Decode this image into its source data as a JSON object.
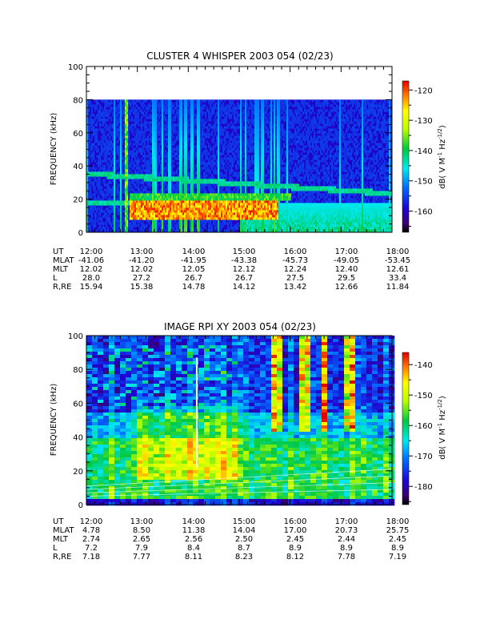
{
  "chart_data": [
    {
      "type": "heatmap",
      "title": "CLUSTER 4 WHISPER 2003 054 (02/23)",
      "ylabel": "FREQUENCY (kHz)",
      "ylim": [
        0,
        100
      ],
      "yticks": [
        "0",
        "20",
        "40",
        "60",
        "80",
        "100"
      ],
      "data_ymax": 80,
      "colorbar": {
        "label_main": "dB( V M",
        "label_sup1": "-1",
        "label_mid": " Hz",
        "label_sup2": "-1/2",
        "label_end": ")",
        "range": [
          -167,
          -117
        ],
        "ticks": [
          "-120",
          "-130",
          "-140",
          "-150",
          "-160"
        ]
      },
      "x": [
        "12:00",
        "13:00",
        "14:00",
        "15:00",
        "16:00",
        "17:00",
        "18:00"
      ],
      "orbit_labels": [
        "UT",
        "MLAT",
        "MLT",
        "L",
        "R,RE"
      ],
      "orbit_rows": [
        [
          "12:00",
          "13:00",
          "14:00",
          "15:00",
          "16:00",
          "17:00",
          "18:00"
        ],
        [
          "-41.06",
          "-41.20",
          "-41.95",
          "-43.38",
          "-45.73",
          "-49.05",
          "-53.45"
        ],
        [
          "12.02",
          "12.02",
          "12.05",
          "12.12",
          "12.24",
          "12.40",
          "12.61"
        ],
        [
          "28.0",
          "27.2",
          "26.7",
          "26.7",
          "27.5",
          "29.5",
          "33.4"
        ],
        [
          "15.94",
          "15.38",
          "14.78",
          "14.12",
          "13.42",
          "12.66",
          "11.84"
        ]
      ],
      "features": {
        "line_near_36_to_25_khz": true,
        "band_near_18_khz_until_1250": true,
        "intense_band_8_to_20_khz_1250_to_1545": true
      }
    },
    {
      "type": "heatmap",
      "title": "IMAGE RPI XY 2003 054 (02/23)",
      "ylabel": "FREQUENCY (kHz)",
      "ylim": [
        0,
        100
      ],
      "yticks": [
        "0",
        "20",
        "40",
        "60",
        "80",
        "100"
      ],
      "colorbar": {
        "label_main": "dB( V M",
        "label_sup1": "-1",
        "label_mid": " Hz",
        "label_sup2": "-1/2",
        "label_end": ")",
        "range": [
          -186,
          -136
        ],
        "ticks": [
          "-140",
          "-150",
          "-160",
          "-170",
          "-180"
        ]
      },
      "x": [
        "12:00",
        "13:00",
        "14:00",
        "15:00",
        "16:00",
        "17:00",
        "18:00"
      ],
      "orbit_labels": [
        "UT",
        "MLAT",
        "MLT",
        "L",
        "R,RE"
      ],
      "orbit_rows": [
        [
          "12:00",
          "13:00",
          "14:00",
          "15:00",
          "16:00",
          "17:00",
          "18:00"
        ],
        [
          "4.78",
          "8.50",
          "11.38",
          "14.04",
          "17.00",
          "20.73",
          "25.75"
        ],
        [
          "2.74",
          "2.65",
          "2.56",
          "2.50",
          "2.45",
          "2.44",
          "2.45"
        ],
        [
          "7.2",
          "7.9",
          "8.4",
          "8.7",
          "8.9",
          "8.9",
          "8.9"
        ],
        [
          "7.18",
          "7.77",
          "8.11",
          "8.23",
          "8.12",
          "7.78",
          "7.19"
        ]
      ],
      "features": {
        "vertical_white_line_at_1410": true,
        "intense_columns_near_1545_1630_1720": true
      }
    }
  ]
}
